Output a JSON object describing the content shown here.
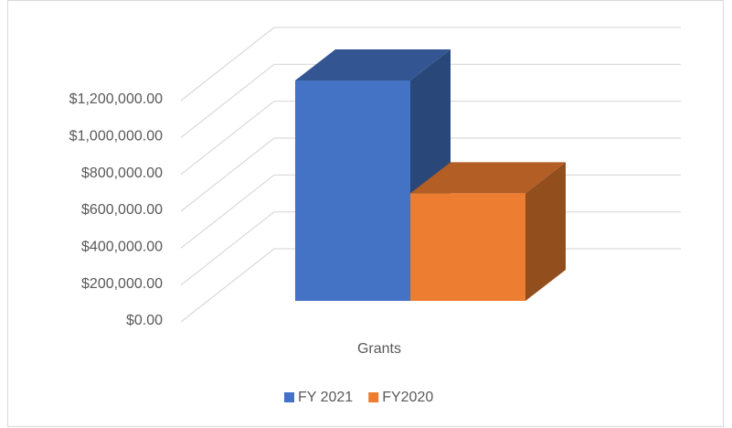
{
  "chart_data": {
    "type": "bar3d",
    "categories": [
      "Grants"
    ],
    "series": [
      {
        "name": "FY 2021",
        "color": "#4472c4",
        "values": [
          1195000
        ]
      },
      {
        "name": "FY2020",
        "color": "#ed7d31",
        "values": [
          583000
        ]
      }
    ],
    "ylim": [
      0,
      1200000
    ],
    "yticks": [
      {
        "value": 0,
        "label": "$0.00"
      },
      {
        "value": 200000,
        "label": "$200,000.00"
      },
      {
        "value": 400000,
        "label": "$400,000.00"
      },
      {
        "value": 600000,
        "label": "$600,000.00"
      },
      {
        "value": 800000,
        "label": "$800,000.00"
      },
      {
        "value": 1000000,
        "label": "$1,000,000.00"
      },
      {
        "value": 1200000,
        "label": "$1,200,000.00"
      }
    ],
    "grid": true,
    "legend": "bottom"
  }
}
